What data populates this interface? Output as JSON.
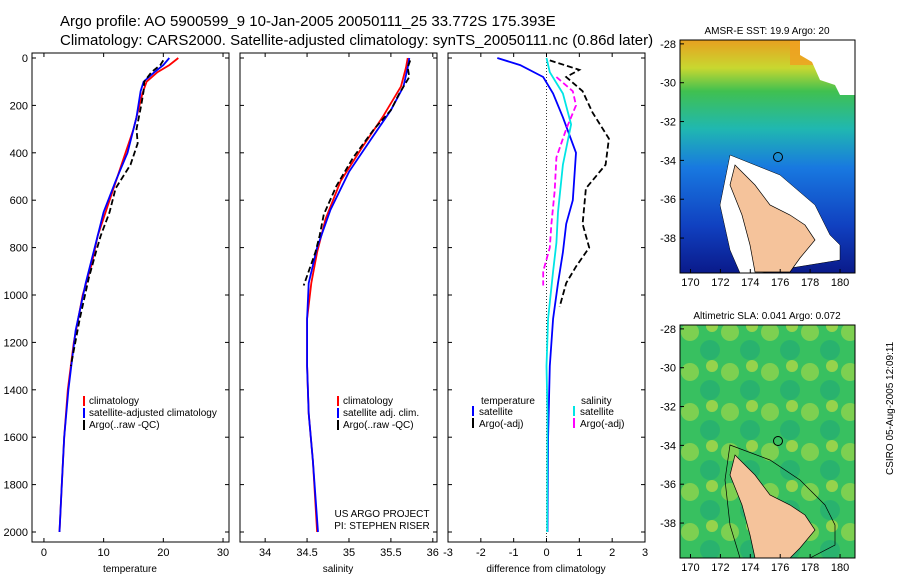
{
  "header": {
    "line1": "Argo profile: AO 5900599_9 10-Jan-2005 20050111_25 33.772S 175.393E",
    "line2": "Climatology: CARS2000. Satellite-adjusted climatology: synTS_20050111.nc (0.86d later)"
  },
  "side_text": "CSIRO 05-Aug-2005 12:09:11",
  "credit": {
    "line1": "US ARGO PROJECT",
    "line2": "PI: STEPHEN RISER"
  },
  "colors": {
    "climatology": "#ff0000",
    "satellite": "#0000ff",
    "argo": "#000000",
    "sal_sat": "#00e5e5",
    "sal_argo": "#ff00ff",
    "land": "#f5c39b"
  },
  "chart_data": [
    {
      "type": "line",
      "xlabel": "temperature",
      "xlim": [
        -2,
        31
      ],
      "ylim": [
        2050,
        0
      ],
      "xticks": [
        "0",
        "10",
        "20",
        "30"
      ],
      "xtick_values": [
        0,
        10,
        20,
        30
      ],
      "yticks": [
        "0",
        "200",
        "400",
        "600",
        "800",
        "1000",
        "1200",
        "1400",
        "1600",
        "1800",
        "2000"
      ],
      "ytick_values": [
        0,
        200,
        400,
        600,
        800,
        1000,
        1200,
        1400,
        1600,
        1800,
        2000
      ],
      "legend": [
        "climatology",
        "satellite-adjusted climatology",
        "Argo(..raw -QC)"
      ],
      "series": [
        {
          "name": "climatology",
          "color": "red",
          "dash": "",
          "points": [
            [
              22.5,
              0
            ],
            [
              21,
              30
            ],
            [
              19,
              60
            ],
            [
              17.2,
              100
            ],
            [
              16.5,
              150
            ],
            [
              15,
              300
            ],
            [
              13,
              450
            ],
            [
              11,
              600
            ],
            [
              9,
              750
            ],
            [
              8,
              870
            ],
            [
              6.5,
              1000
            ],
            [
              5,
              1200
            ],
            [
              4,
              1400
            ],
            [
              3.4,
              1600
            ],
            [
              3,
              1800
            ],
            [
              2.6,
              2000
            ]
          ]
        },
        {
          "name": "satellite-adjusted climatology",
          "color": "blue",
          "dash": "",
          "points": [
            [
              21,
              0
            ],
            [
              20,
              30
            ],
            [
              18.5,
              60
            ],
            [
              16.7,
              100
            ],
            [
              16.2,
              140
            ],
            [
              15.5,
              250
            ],
            [
              14,
              400
            ],
            [
              12,
              520
            ],
            [
              10,
              650
            ],
            [
              8.5,
              800
            ],
            [
              7,
              950
            ],
            [
              5.3,
              1150
            ],
            [
              4.1,
              1400
            ],
            [
              3.4,
              1600
            ],
            [
              3,
              1800
            ],
            [
              2.6,
              2000
            ]
          ]
        },
        {
          "name": "Argo(..raw -QC)",
          "color": "black",
          "dash": "6,3",
          "points": [
            [
              20,
              10
            ],
            [
              19.5,
              30
            ],
            [
              18,
              60
            ],
            [
              16.8,
              100
            ],
            [
              16.7,
              140
            ],
            [
              16.3,
              200
            ],
            [
              15.5,
              300
            ],
            [
              15.7,
              360
            ],
            [
              14.5,
              450
            ],
            [
              12,
              550
            ],
            [
              11,
              650
            ],
            [
              9.5,
              750
            ],
            [
              8.7,
              820
            ],
            [
              7.5,
              930
            ],
            [
              6,
              1100
            ],
            [
              4.5,
              1300
            ]
          ]
        }
      ]
    },
    {
      "type": "line",
      "xlabel": "salinity",
      "xlim": [
        33.7,
        36.05
      ],
      "ylim": [
        2050,
        0
      ],
      "xticks": [
        "34",
        "34.5",
        "35",
        "35.5",
        "36"
      ],
      "xtick_values": [
        34,
        34.5,
        35,
        35.5,
        36
      ],
      "legend": [
        "climatology",
        "satellite adj. clim.",
        "Argo(..raw -QC)"
      ],
      "series": [
        {
          "name": "climatology",
          "color": "red",
          "dash": "",
          "points": [
            [
              35.7,
              0
            ],
            [
              35.68,
              40
            ],
            [
              35.62,
              120
            ],
            [
              35.4,
              250
            ],
            [
              35.15,
              380
            ],
            [
              34.9,
              520
            ],
            [
              34.72,
              680
            ],
            [
              34.62,
              820
            ],
            [
              34.55,
              950
            ],
            [
              34.5,
              1100
            ],
            [
              34.5,
              1300
            ],
            [
              34.52,
              1500
            ],
            [
              34.57,
              1700
            ],
            [
              34.62,
              2000
            ]
          ]
        },
        {
          "name": "satellite adj. clim.",
          "color": "blue",
          "dash": "",
          "points": [
            [
              35.72,
              0
            ],
            [
              35.7,
              40
            ],
            [
              35.65,
              120
            ],
            [
              35.5,
              220
            ],
            [
              35.25,
              350
            ],
            [
              35,
              480
            ],
            [
              34.78,
              640
            ],
            [
              34.62,
              800
            ],
            [
              34.52,
              950
            ],
            [
              34.5,
              1100
            ],
            [
              34.5,
              1300
            ],
            [
              34.52,
              1500
            ],
            [
              34.57,
              1700
            ],
            [
              34.63,
              2000
            ]
          ]
        },
        {
          "name": "Argo(..raw -QC)",
          "color": "black",
          "dash": "6,3",
          "points": [
            [
              35.73,
              10
            ],
            [
              35.7,
              40
            ],
            [
              35.72,
              80
            ],
            [
              35.6,
              150
            ],
            [
              35.5,
              220
            ],
            [
              35.3,
              300
            ],
            [
              35.05,
              420
            ],
            [
              34.85,
              540
            ],
            [
              34.7,
              660
            ],
            [
              34.65,
              750
            ],
            [
              34.6,
              820
            ],
            [
              34.52,
              900
            ],
            [
              34.46,
              960
            ]
          ]
        }
      ]
    },
    {
      "type": "line",
      "xlabel": "difference from climatology",
      "xlim": [
        -3,
        3
      ],
      "ylim": [
        2050,
        0
      ],
      "xticks": [
        "-3",
        "-2",
        "-1",
        "0",
        "1",
        "2",
        "3"
      ],
      "xtick_values": [
        -3,
        -2,
        -1,
        0,
        1,
        2,
        3
      ],
      "legend_left": [
        "temperature",
        "satellite",
        "Argo(-adj)"
      ],
      "legend_right": [
        "salinity",
        "satellite",
        "Argo(-adj)"
      ],
      "series": [
        {
          "name": "temperature satellite",
          "color": "blue",
          "dash": "",
          "points": [
            [
              -1.5,
              0
            ],
            [
              -0.8,
              30
            ],
            [
              -0.1,
              80
            ],
            [
              0.2,
              150
            ],
            [
              0.5,
              250
            ],
            [
              0.9,
              400
            ],
            [
              0.8,
              600
            ],
            [
              0.6,
              700
            ],
            [
              0.5,
              820
            ],
            [
              0.35,
              950
            ],
            [
              0.2,
              1100
            ],
            [
              0.1,
              1300
            ],
            [
              0.05,
              1600
            ],
            [
              0.03,
              2000
            ]
          ]
        },
        {
          "name": "temperature Argo(-adj)",
          "color": "black",
          "dash": "6,3",
          "points": [
            [
              0.1,
              10
            ],
            [
              1,
              50
            ],
            [
              0.6,
              80
            ],
            [
              1.1,
              140
            ],
            [
              1.4,
              230
            ],
            [
              1.9,
              340
            ],
            [
              1.8,
              450
            ],
            [
              1.2,
              550
            ],
            [
              1.1,
              700
            ],
            [
              1.3,
              800
            ],
            [
              0.9,
              880
            ],
            [
              0.6,
              950
            ],
            [
              0.4,
              1050
            ]
          ]
        },
        {
          "name": "salinity satellite",
          "color": "cyan",
          "dash": "",
          "points": [
            [
              0,
              0
            ],
            [
              0.1,
              60
            ],
            [
              0.5,
              150
            ],
            [
              0.75,
              280
            ],
            [
              0.5,
              450
            ],
            [
              0.35,
              650
            ],
            [
              0.3,
              780
            ],
            [
              0.2,
              900
            ],
            [
              0.05,
              1100
            ],
            [
              0,
              1300
            ],
            [
              0.03,
              1500
            ],
            [
              0.02,
              2000
            ]
          ]
        },
        {
          "name": "salinity Argo(-adj)",
          "color": "magenta",
          "dash": "6,3",
          "points": [
            [
              0.3,
              80
            ],
            [
              0.8,
              140
            ],
            [
              0.9,
              200
            ],
            [
              0.6,
              300
            ],
            [
              0.3,
              420
            ],
            [
              0.25,
              560
            ],
            [
              0.15,
              700
            ],
            [
              0.1,
              800
            ],
            [
              -0.1,
              900
            ],
            [
              -0.1,
              960
            ]
          ]
        }
      ]
    },
    {
      "type": "heatmap",
      "title": "AMSR-E SST: 19.9 Argo: 20",
      "xticks": [
        "170",
        "172",
        "174",
        "176",
        "178",
        "180"
      ],
      "yticks": [
        "-28",
        "-30",
        "-32",
        "-34",
        "-36",
        "-38"
      ],
      "xlim": [
        169.3,
        181
      ],
      "ylim": [
        -39.8,
        -27.8
      ]
    },
    {
      "type": "heatmap",
      "title": "Altimetric SLA: 0.041 Argo: 0.072",
      "xticks": [
        "170",
        "172",
        "174",
        "176",
        "178",
        "180"
      ],
      "yticks": [
        "-28",
        "-30",
        "-32",
        "-34",
        "-36",
        "-38"
      ],
      "xlim": [
        169.3,
        181
      ],
      "ylim": [
        -39.8,
        -27.8
      ]
    }
  ]
}
